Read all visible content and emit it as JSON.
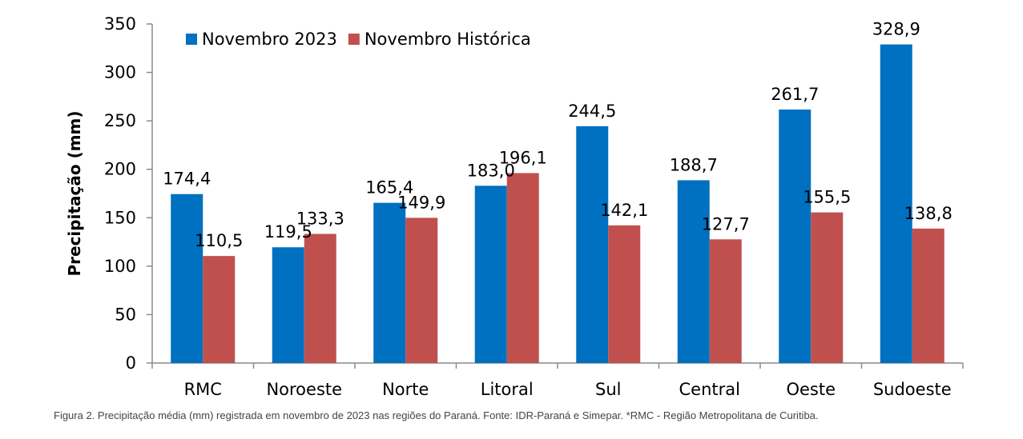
{
  "caption": "Figura 2. Precipitação média (mm) registrada em novembro de 2023 nas regiões do Paraná. Fonte: IDR-Paraná e Simepar. *RMC - Região Metropolitana de Curitiba.",
  "chart_data": {
    "type": "bar",
    "title": "",
    "xlabel": "",
    "ylabel": "Precipitação (mm)",
    "ylim": [
      0,
      350
    ],
    "yticks": [
      0,
      50,
      100,
      150,
      200,
      250,
      300,
      350
    ],
    "grid": false,
    "legend_position": "top-left",
    "categories": [
      "RMC",
      "Noroeste",
      "Norte",
      "Litoral",
      "Sul",
      "Central",
      "Oeste",
      "Sudoeste"
    ],
    "series": [
      {
        "name": "Novembro 2023",
        "color": "#0070C0",
        "values": [
          174.4,
          119.5,
          165.4,
          183.0,
          244.5,
          188.7,
          261.7,
          328.9
        ],
        "labels": [
          "174,4",
          "119,5",
          "165,4",
          "183,0",
          "244,5",
          "188,7",
          "261,7",
          "328,9"
        ]
      },
      {
        "name": "Novembro Histórica",
        "color": "#C0504D",
        "values": [
          110.5,
          133.3,
          149.9,
          196.1,
          142.1,
          127.7,
          155.5,
          138.8
        ],
        "labels": [
          "110,5",
          "133,3",
          "149,9",
          "196,1",
          "142,1",
          "127,7",
          "155,5",
          "138,8"
        ]
      }
    ]
  }
}
